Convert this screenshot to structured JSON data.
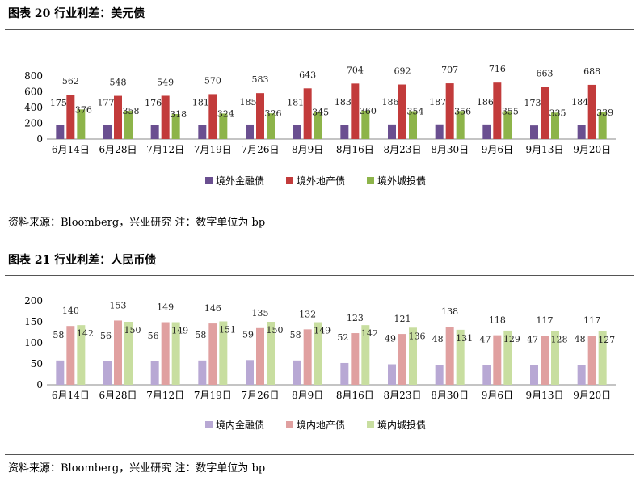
{
  "figure1": {
    "title": "图表 20  行业利差：美元债",
    "source": "资料来源：Bloomberg，兴业研究   注：数字单位为 bp"
  },
  "figure2": {
    "title": "图表 21  行业利差：人民币债",
    "source": "资料来源：Bloomberg，兴业研究   注：数字单位为 bp"
  },
  "colors": {
    "usd": [
      "#6a4f90",
      "#c23b3b",
      "#8db44a"
    ],
    "cny": [
      "#b8a8d4",
      "#e0a0a0",
      "#c8dea0"
    ]
  },
  "chart_data": [
    {
      "type": "bar",
      "categories": [
        "6月14日",
        "6月28日",
        "7月12日",
        "7月19日",
        "7月26日",
        "8月9日",
        "8月16日",
        "8月23日",
        "8月30日",
        "9月6日",
        "9月13日",
        "9月20日"
      ],
      "series": [
        {
          "name": "境外金融债",
          "values": [
            175,
            177,
            176,
            181,
            185,
            181,
            183,
            186,
            187,
            186,
            173,
            184
          ]
        },
        {
          "name": "境外地产债",
          "values": [
            562,
            548,
            549,
            570,
            583,
            643,
            704,
            692,
            707,
            716,
            663,
            688
          ]
        },
        {
          "name": "境外城投债",
          "values": [
            376,
            358,
            318,
            324,
            326,
            345,
            360,
            354,
            356,
            355,
            335,
            339
          ]
        }
      ],
      "ylim": [
        0,
        800
      ],
      "yticks": [
        0,
        200,
        400,
        600,
        800
      ],
      "legend_position": "bottom",
      "grid": false
    },
    {
      "type": "bar",
      "categories": [
        "6月14日",
        "6月28日",
        "7月12日",
        "7月19日",
        "7月26日",
        "8月9日",
        "8月16日",
        "8月23日",
        "8月30日",
        "9月6日",
        "9月13日",
        "9月20日"
      ],
      "series": [
        {
          "name": "境内金融债",
          "values": [
            58,
            56,
            56,
            58,
            59,
            58,
            52,
            49,
            48,
            47,
            47,
            48
          ]
        },
        {
          "name": "境内地产债",
          "values": [
            140,
            153,
            149,
            146,
            135,
            132,
            123,
            121,
            138,
            118,
            117,
            117
          ]
        },
        {
          "name": "境内城投债",
          "values": [
            142,
            150,
            149,
            151,
            150,
            149,
            142,
            136,
            131,
            129,
            128,
            127
          ]
        }
      ],
      "ylim": [
        0,
        200
      ],
      "yticks": [
        0,
        50,
        100,
        150,
        200
      ],
      "legend_position": "bottom",
      "grid": false
    }
  ]
}
